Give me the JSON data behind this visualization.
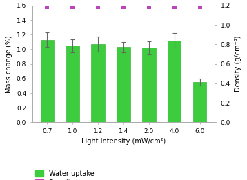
{
  "categories": [
    "0.7",
    "1.0",
    "1.2",
    "1.4",
    "2.0",
    "4.0",
    "6.0"
  ],
  "bar_values": [
    1.13,
    1.05,
    1.07,
    1.03,
    1.02,
    1.12,
    0.55
  ],
  "bar_errors": [
    0.1,
    0.09,
    0.1,
    0.07,
    0.09,
    0.1,
    0.05
  ],
  "density_values_left_scale": [
    1.58,
    1.58,
    1.58,
    1.58,
    1.58,
    1.58,
    1.58
  ],
  "bar_color": "#3dcc3d",
  "bar_edgecolor": "#28a828",
  "density_color": "#bb44bb",
  "ylabel_left": "Mass change (%)",
  "ylabel_right": "Density (g/cm⁻³)",
  "xlabel": "Light Intensity (mW/cm²)",
  "ylim_left": [
    0,
    1.6
  ],
  "ylim_right": [
    0,
    1.2
  ],
  "yticks_left": [
    0,
    0.2,
    0.4,
    0.6,
    0.8,
    1.0,
    1.2,
    1.4,
    1.6
  ],
  "yticks_right": [
    0,
    0.2,
    0.4,
    0.6,
    0.8,
    1.0,
    1.2
  ],
  "legend_water": "Water uptake",
  "legend_density": "Density",
  "background_color": "#ffffff",
  "label_fontsize": 7,
  "tick_fontsize": 6.5
}
